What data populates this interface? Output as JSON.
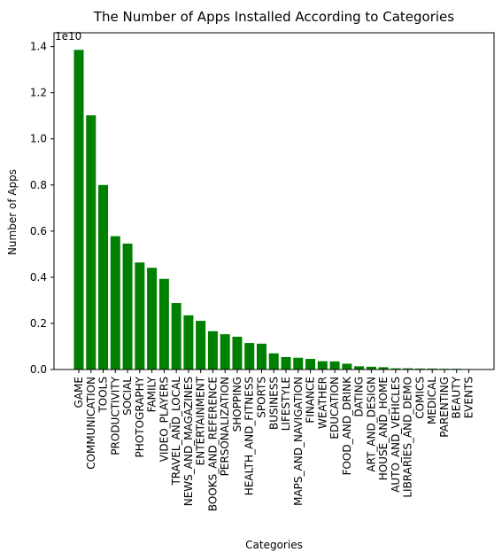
{
  "chart_data": {
    "type": "bar",
    "title": "The Number of Apps Installed According to Categories",
    "xlabel": "Categories",
    "ylabel": "Number of Apps",
    "y_offset_label": "1e10",
    "ylim": [
      0,
      1.46
    ],
    "yticks": [
      "0.0",
      "0.2",
      "0.4",
      "0.6",
      "0.8",
      "1.0",
      "1.2",
      "1.4"
    ],
    "grid": false,
    "bar_color": "#008000",
    "categories": [
      "GAME",
      "COMMUNICATION",
      "TOOLS",
      "PRODUCTIVITY",
      "SOCIAL",
      "PHOTOGRAPHY",
      "FAMILY",
      "VIDEO_PLAYERS",
      "TRAVEL_AND_LOCAL",
      "NEWS_AND_MAGAZINES",
      "ENTERTAINMENT",
      "BOOKS_AND_REFERENCE",
      "PERSONALIZATION",
      "SHOPPING",
      "HEALTH_AND_FITNESS",
      "SPORTS",
      "BUSINESS",
      "LIFESTYLE",
      "MAPS_AND_NAVIGATION",
      "FINANCE",
      "WEATHER",
      "EDUCATION",
      "FOOD_AND_DRINK",
      "DATING",
      "ART_AND_DESIGN",
      "HOUSE_AND_HOME",
      "AUTO_AND_VEHICLES",
      "LIBRARIES_AND_DEMO",
      "COMICS",
      "MEDICAL",
      "PARENTING",
      "BEAUTY",
      "EVENTS"
    ],
    "values": [
      1.386,
      1.102,
      0.8,
      0.578,
      0.546,
      0.464,
      0.441,
      0.393,
      0.288,
      0.235,
      0.211,
      0.166,
      0.153,
      0.142,
      0.115,
      0.112,
      0.07,
      0.054,
      0.051,
      0.046,
      0.036,
      0.035,
      0.025,
      0.014,
      0.012,
      0.01,
      0.005,
      0.005,
      0.004,
      0.004,
      0.003,
      0.003,
      0.002
    ]
  }
}
